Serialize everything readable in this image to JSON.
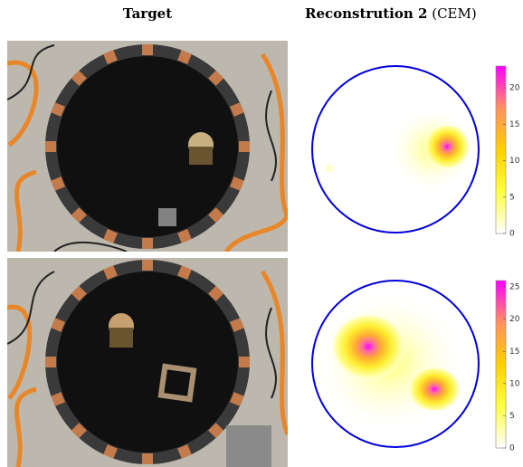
{
  "figure": {
    "columns": [
      {
        "title": "Target"
      },
      {
        "title": "Reconstrution 2",
        "note": "(CEM)"
      }
    ],
    "colorbars": [
      {
        "lim": [
          0,
          23
        ],
        "ticks": [
          0,
          5,
          10,
          15,
          20
        ]
      },
      {
        "lim": [
          0,
          26
        ],
        "ticks": [
          0,
          5,
          10,
          15,
          20,
          25
        ]
      }
    ]
  }
}
